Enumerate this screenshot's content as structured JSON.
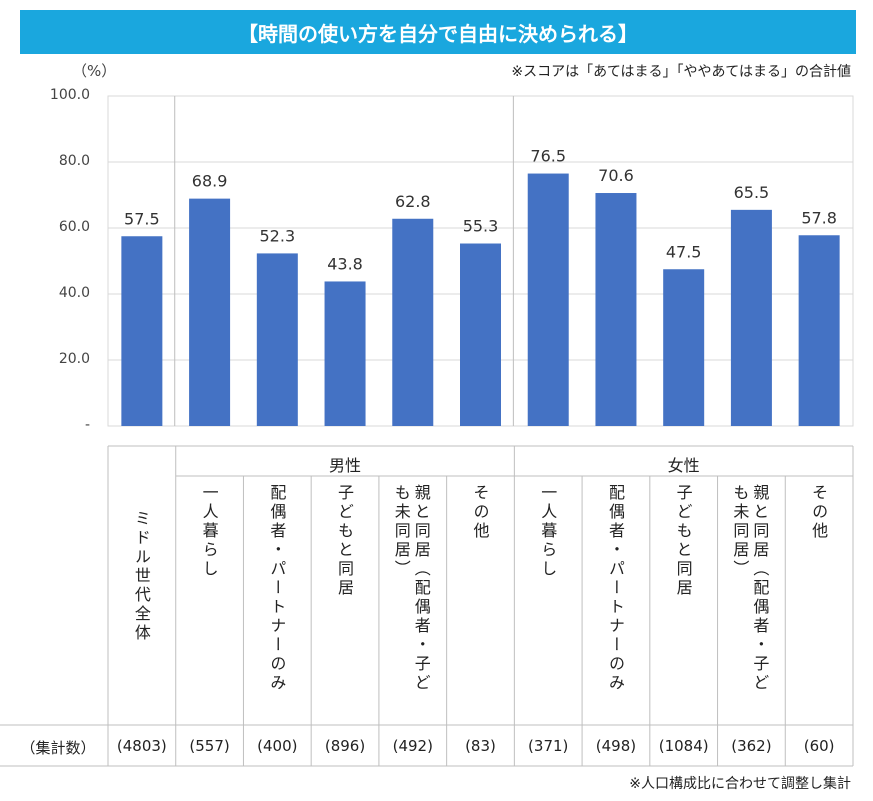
{
  "title": "【時間の使い方を自分で自由に決められる】",
  "unit_label": "（%）",
  "note": "※スコアは「あてはまる」「ややあてはまる」の合計値",
  "footnote": "※人口構成比に合わせて調整し集計",
  "count_header": "（集計数）",
  "groups": [
    {
      "label": "男性"
    },
    {
      "label": "女性"
    }
  ],
  "colors": {
    "bar": "#4472c4",
    "title_bg": "#1aa7de",
    "grid": "#d9d9d9"
  },
  "chart_data": {
    "type": "bar",
    "title": "【時間の使い方を自分で自由に決められる】",
    "ylabel": "（%）",
    "ylim": [
      0,
      100
    ],
    "yticks": [
      "-",
      "20.0",
      "40.0",
      "60.0",
      "80.0",
      "100.0"
    ],
    "grid": true,
    "categories": [
      "ミドル世代全体",
      "一人暮らし",
      "配偶者・パートナーのみ",
      "子どもと同居",
      "親と同居（配偶者・子どもも未同居）",
      "その他",
      "一人暮らし",
      "配偶者・パートナーのみ",
      "子どもと同居",
      "親と同居（配偶者・子どもも未同居）",
      "その他"
    ],
    "category_lines": [
      [
        "ミドル世代全体"
      ],
      [
        "一人暮らし"
      ],
      [
        "配偶者・パートナーのみ"
      ],
      [
        "子どもと同居"
      ],
      [
        "親と同居（配偶者・子ど",
        "も未同居）"
      ],
      [
        "その他"
      ],
      [
        "一人暮らし"
      ],
      [
        "配偶者・パートナーのみ"
      ],
      [
        "子どもと同居"
      ],
      [
        "親と同居（配偶者・子ど",
        "も未同居）"
      ],
      [
        "その他"
      ]
    ],
    "group_of": [
      null,
      "男性",
      "男性",
      "男性",
      "男性",
      "男性",
      "女性",
      "女性",
      "女性",
      "女性",
      "女性"
    ],
    "values": [
      57.5,
      68.9,
      52.3,
      43.8,
      62.8,
      55.3,
      76.5,
      70.6,
      47.5,
      65.5,
      57.8
    ],
    "value_labels": [
      "57.5",
      "68.9",
      "52.3",
      "43.8",
      "62.8",
      "55.3",
      "76.5",
      "70.6",
      "47.5",
      "65.5",
      "57.8"
    ],
    "counts": [
      "(4803)",
      "(557)",
      "(400)",
      "(896)",
      "(492)",
      "(83)",
      "(371)",
      "(498)",
      "(1084)",
      "(362)",
      "(60)"
    ]
  }
}
